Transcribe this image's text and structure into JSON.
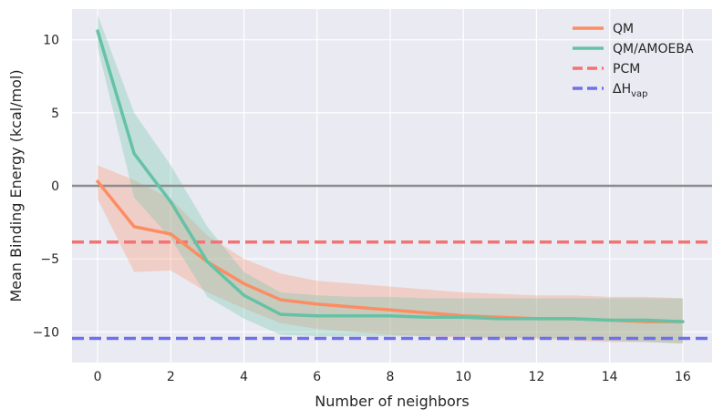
{
  "chart_data": {
    "type": "line",
    "xlabel": "Number of neighbors",
    "ylabel": "Mean Binding Energy (kcal/mol)",
    "xlim": [
      -0.7,
      16.8
    ],
    "ylim": [
      -12.1,
      12.1
    ],
    "xticks": [
      0,
      2,
      4,
      6,
      8,
      10,
      12,
      14,
      16
    ],
    "xtick_labels": [
      "0",
      "2",
      "4",
      "6",
      "8",
      "10",
      "12",
      "14",
      "16"
    ],
    "yticks": [
      10,
      5,
      0,
      -5,
      -10
    ],
    "ytick_labels": [
      "10",
      "5",
      "0",
      "−5",
      "−10"
    ],
    "grid": true,
    "legend_position": "top-right",
    "x": [
      0,
      1,
      2,
      3,
      4,
      5,
      6,
      7,
      8,
      9,
      10,
      11,
      12,
      13,
      14,
      15,
      16
    ],
    "series": [
      {
        "name": "QM",
        "color": "#fc8d62",
        "values": [
          0.3,
          -2.8,
          -3.3,
          -5.2,
          -6.7,
          -7.8,
          -8.1,
          -8.3,
          -8.5,
          -8.7,
          -8.9,
          -9.0,
          -9.1,
          -9.1,
          -9.2,
          -9.3,
          -9.3
        ],
        "band_upper": [
          1.4,
          0.4,
          -0.9,
          -3.4,
          -5.0,
          -6.0,
          -6.5,
          -6.7,
          -6.9,
          -7.1,
          -7.3,
          -7.4,
          -7.5,
          -7.5,
          -7.6,
          -7.6,
          -7.7
        ],
        "band_lower": [
          -0.9,
          -5.9,
          -5.8,
          -7.3,
          -8.4,
          -9.4,
          -9.8,
          -10.0,
          -10.2,
          -10.3,
          -10.4,
          -10.5,
          -10.5,
          -10.6,
          -10.7,
          -10.7,
          -10.8
        ]
      },
      {
        "name": "QM/AMOEBA",
        "color": "#66c2a5",
        "values": [
          10.6,
          2.2,
          -1.1,
          -5.2,
          -7.5,
          -8.8,
          -8.9,
          -8.9,
          -8.9,
          -9.0,
          -9.0,
          -9.1,
          -9.1,
          -9.1,
          -9.2,
          -9.2,
          -9.3
        ],
        "band_upper": [
          11.7,
          5.0,
          1.4,
          -2.8,
          -5.9,
          -7.3,
          -7.5,
          -7.6,
          -7.6,
          -7.7,
          -7.7,
          -7.7,
          -7.7,
          -7.7,
          -7.7,
          -7.7,
          -7.7
        ],
        "band_lower": [
          9.5,
          -0.8,
          -3.6,
          -7.6,
          -9.1,
          -10.2,
          -10.3,
          -10.3,
          -10.3,
          -10.3,
          -10.3,
          -10.4,
          -10.4,
          -10.5,
          -10.6,
          -10.7,
          -10.8
        ]
      }
    ],
    "reference_lines": [
      {
        "name": "PCM",
        "value": -3.85,
        "color": "#f27373",
        "style": "dashed"
      },
      {
        "name": "ΔH_vap",
        "value": -10.45,
        "color": "#6f70ea",
        "style": "dashed"
      },
      {
        "name": "zero",
        "value": 0,
        "color": "#8c8c8c",
        "style": "solid"
      }
    ],
    "legend": [
      {
        "label": "QM",
        "color": "#fc8d62",
        "style": "solid"
      },
      {
        "label": "QM/AMOEBA",
        "color": "#66c2a5",
        "style": "solid"
      },
      {
        "label": "PCM",
        "color": "#f27373",
        "style": "dashed"
      },
      {
        "label": "ΔH",
        "subscript": "vap",
        "color": "#6f70ea",
        "style": "dashed"
      }
    ],
    "plot_background": "#eaeaf2",
    "grid_color": "#ffffff"
  }
}
